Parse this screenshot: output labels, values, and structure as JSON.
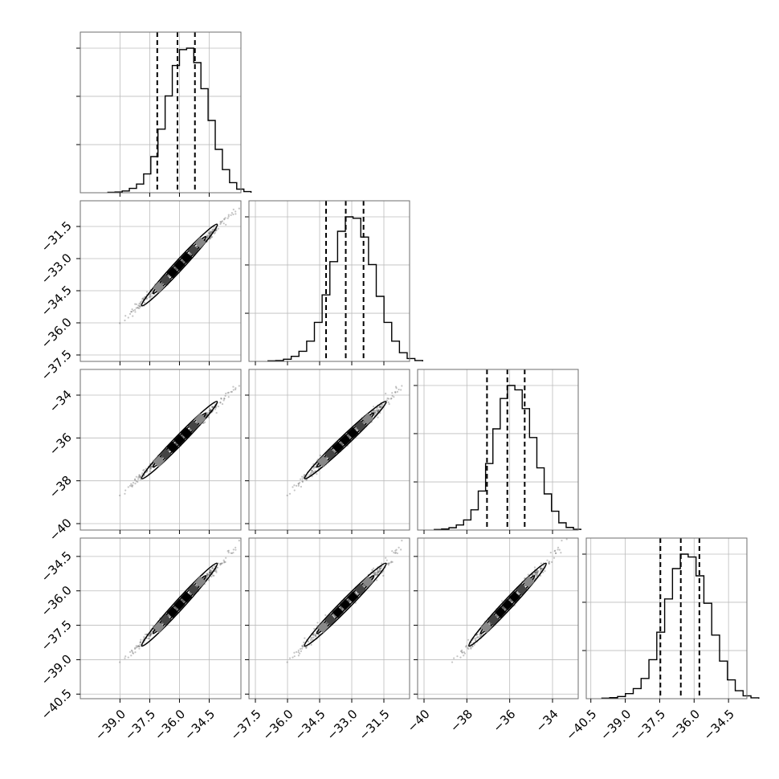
{
  "chart_data": {
    "type": "corner",
    "n_params": 4,
    "grid": true,
    "params": [
      {
        "range": [
          -41.0,
          -32.9
        ],
        "ticks": [
          -39.0,
          -37.5,
          -36.0,
          -34.5
        ],
        "tick_labels": [
          "−39.0",
          "−37.5",
          "−36.0",
          "−34.5"
        ],
        "quantiles": [
          -37.12,
          -36.1,
          -35.22
        ],
        "mean": -36.0,
        "sd": 0.95,
        "hist_counts": [
          0.003,
          0.005,
          0.012,
          0.03,
          0.06,
          0.13,
          0.25,
          0.44,
          0.67,
          0.88,
          0.99,
          1.0,
          0.9,
          0.72,
          0.5,
          0.3,
          0.16,
          0.07,
          0.025,
          0.008
        ]
      },
      {
        "range": [
          -37.8,
          -30.3
        ],
        "ticks": [
          -37.5,
          -36.0,
          -34.5,
          -33.0,
          -31.5
        ],
        "tick_labels": [
          "−37.5",
          "−36.0",
          "−34.5",
          "−33.0",
          "−31.5"
        ],
        "quantiles": [
          -34.2,
          -33.28,
          -32.45
        ],
        "mean": -33.3,
        "sd": 0.95,
        "hist_counts": [
          0.004,
          0.006,
          0.015,
          0.035,
          0.07,
          0.14,
          0.27,
          0.46,
          0.69,
          0.9,
          1.0,
          0.99,
          0.86,
          0.67,
          0.45,
          0.27,
          0.14,
          0.06,
          0.02,
          0.006
        ]
      },
      {
        "range": [
          -40.3,
          -32.8
        ],
        "ticks": [
          -40,
          -38,
          -36,
          -34
        ],
        "tick_labels": [
          "−40",
          "−38",
          "−36",
          "−34"
        ],
        "quantiles": [
          -37.06,
          -36.11,
          -35.3
        ],
        "mean": -36.1,
        "sd": 0.9,
        "hist_counts": [
          0.004,
          0.007,
          0.016,
          0.035,
          0.07,
          0.14,
          0.27,
          0.46,
          0.7,
          0.91,
          1.0,
          0.97,
          0.84,
          0.64,
          0.43,
          0.25,
          0.13,
          0.05,
          0.018,
          0.005
        ]
      },
      {
        "range": [
          -40.7,
          -33.7
        ],
        "ticks": [
          -40.5,
          -39.0,
          -37.5,
          -36.0,
          -34.5
        ],
        "tick_labels": [
          "−40.5",
          "−39.0",
          "−37.5",
          "−36.0",
          "−34.5"
        ],
        "quantiles": [
          -37.47,
          -36.58,
          -35.77
        ],
        "mean": -36.6,
        "sd": 0.9,
        "hist_counts": [
          0.004,
          0.007,
          0.015,
          0.035,
          0.07,
          0.14,
          0.27,
          0.46,
          0.69,
          0.9,
          1.0,
          0.98,
          0.85,
          0.66,
          0.44,
          0.26,
          0.13,
          0.055,
          0.02,
          0.006
        ]
      }
    ]
  }
}
